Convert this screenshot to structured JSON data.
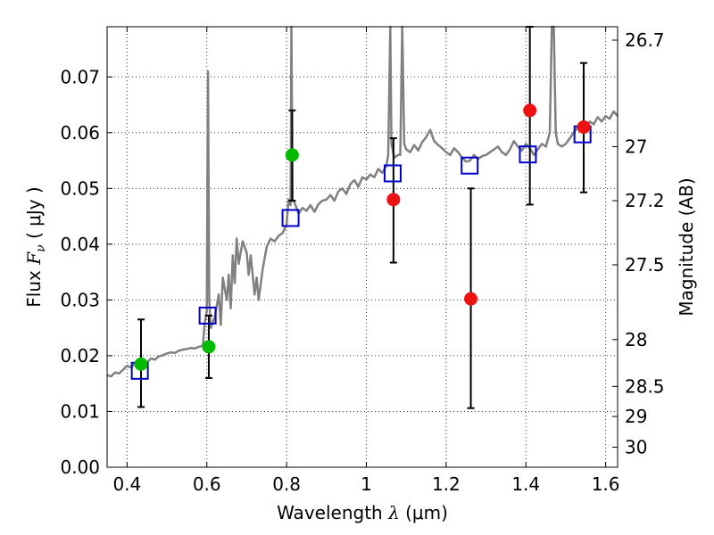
{
  "chart_data": {
    "type": "scatter",
    "xlabel": "Wavelength  λ (μm)",
    "ylabel": "Flux  F_ν  ( μJy )",
    "y2label": "Magnitude (AB)",
    "xlim": [
      0.35,
      1.63
    ],
    "ylim": [
      0.0,
      0.079
    ],
    "grid": true,
    "x_ticks": [
      0.4,
      0.6,
      0.8,
      1.0,
      1.2,
      1.4,
      1.6
    ],
    "x_tick_labels": [
      "0.4",
      "0.6",
      "0.8",
      "1",
      "1.2",
      "1.4",
      "1.6"
    ],
    "y_ticks": [
      0.0,
      0.01,
      0.02,
      0.03,
      0.04,
      0.05,
      0.06,
      0.07
    ],
    "y_tick_labels": [
      "0.00",
      "0.01",
      "0.02",
      "0.03",
      "0.04",
      "0.05",
      "0.06",
      "0.07"
    ],
    "y2_ticks": [
      {
        "label": "26.7",
        "flux": 0.0766
      },
      {
        "label": "27",
        "flux": 0.0575
      },
      {
        "label": "27.2",
        "flux": 0.0478
      },
      {
        "label": "27.5",
        "flux": 0.0363
      },
      {
        "label": "28",
        "flux": 0.0229
      },
      {
        "label": "28.5",
        "flux": 0.0145
      },
      {
        "label": "29",
        "flux": 0.0091
      },
      {
        "label": "30",
        "flux": 0.0036
      }
    ],
    "colors": {
      "spectrum": "#808080",
      "green_points": "#00bb00",
      "red_points": "#ee1111",
      "model_squares": "#0000cc",
      "error_bars": "#000000"
    },
    "series": [
      {
        "kind": "spectrum",
        "points": [
          [
            0.35,
            0.0165
          ],
          [
            0.36,
            0.0163
          ],
          [
            0.37,
            0.017
          ],
          [
            0.38,
            0.0168
          ],
          [
            0.39,
            0.0175
          ],
          [
            0.4,
            0.0182
          ],
          [
            0.41,
            0.0179
          ],
          [
            0.42,
            0.0186
          ],
          [
            0.43,
            0.0183
          ],
          [
            0.44,
            0.019
          ],
          [
            0.45,
            0.0188
          ],
          [
            0.46,
            0.0195
          ],
          [
            0.47,
            0.0193
          ],
          [
            0.48,
            0.0199
          ],
          [
            0.49,
            0.0201
          ],
          [
            0.5,
            0.0204
          ],
          [
            0.51,
            0.0206
          ],
          [
            0.52,
            0.0205
          ],
          [
            0.53,
            0.0209
          ],
          [
            0.54,
            0.0211
          ],
          [
            0.55,
            0.0212
          ],
          [
            0.56,
            0.0214
          ],
          [
            0.57,
            0.0213
          ],
          [
            0.58,
            0.0216
          ],
          [
            0.59,
            0.0218
          ],
          [
            0.595,
            0.026
          ],
          [
            0.6,
            0.028
          ],
          [
            0.603,
            0.071
          ],
          [
            0.606,
            0.03
          ],
          [
            0.61,
            0.025
          ],
          [
            0.62,
            0.027
          ],
          [
            0.63,
            0.031
          ],
          [
            0.635,
            0.0255
          ],
          [
            0.64,
            0.034
          ],
          [
            0.65,
            0.03
          ],
          [
            0.655,
            0.0345
          ],
          [
            0.66,
            0.0285
          ],
          [
            0.665,
            0.038
          ],
          [
            0.67,
            0.033
          ],
          [
            0.675,
            0.041
          ],
          [
            0.68,
            0.0365
          ],
          [
            0.69,
            0.0405
          ],
          [
            0.7,
            0.0385
          ],
          [
            0.705,
            0.0345
          ],
          [
            0.71,
            0.038
          ],
          [
            0.72,
            0.031
          ],
          [
            0.725,
            0.034
          ],
          [
            0.73,
            0.03
          ],
          [
            0.74,
            0.0355
          ],
          [
            0.75,
            0.0395
          ],
          [
            0.76,
            0.041
          ],
          [
            0.77,
            0.0405
          ],
          [
            0.78,
            0.0415
          ],
          [
            0.79,
            0.042
          ],
          [
            0.8,
            0.0435
          ],
          [
            0.805,
            0.048
          ],
          [
            0.81,
            0.047
          ],
          [
            0.812,
            0.079
          ],
          [
            0.815,
            0.048
          ],
          [
            0.82,
            0.0475
          ],
          [
            0.83,
            0.0455
          ],
          [
            0.84,
            0.0465
          ],
          [
            0.85,
            0.046
          ],
          [
            0.86,
            0.047
          ],
          [
            0.87,
            0.0458
          ],
          [
            0.88,
            0.0472
          ],
          [
            0.89,
            0.0478
          ],
          [
            0.9,
            0.048
          ],
          [
            0.91,
            0.0488
          ],
          [
            0.92,
            0.0478
          ],
          [
            0.93,
            0.0495
          ],
          [
            0.94,
            0.05
          ],
          [
            0.95,
            0.049
          ],
          [
            0.96,
            0.0508
          ],
          [
            0.97,
            0.0515
          ],
          [
            0.98,
            0.0503
          ],
          [
            0.99,
            0.052
          ],
          [
            1.0,
            0.0516
          ],
          [
            1.01,
            0.0525
          ],
          [
            1.02,
            0.052
          ],
          [
            1.03,
            0.0535
          ],
          [
            1.04,
            0.0528
          ],
          [
            1.05,
            0.054
          ],
          [
            1.055,
            0.056
          ],
          [
            1.06,
            0.079
          ],
          [
            1.063,
            0.058
          ],
          [
            1.07,
            0.0555
          ],
          [
            1.08,
            0.056
          ],
          [
            1.085,
            0.056
          ],
          [
            1.09,
            0.079
          ],
          [
            1.095,
            0.058
          ],
          [
            1.1,
            0.057
          ],
          [
            1.11,
            0.0565
          ],
          [
            1.12,
            0.0578
          ],
          [
            1.13,
            0.0568
          ],
          [
            1.14,
            0.0583
          ],
          [
            1.15,
            0.0592
          ],
          [
            1.16,
            0.0605
          ],
          [
            1.17,
            0.0585
          ],
          [
            1.18,
            0.0578
          ],
          [
            1.19,
            0.0572
          ],
          [
            1.2,
            0.0565
          ],
          [
            1.21,
            0.056
          ],
          [
            1.22,
            0.0572
          ],
          [
            1.23,
            0.0565
          ],
          [
            1.24,
            0.0555
          ],
          [
            1.25,
            0.0548
          ],
          [
            1.26,
            0.055
          ],
          [
            1.27,
            0.056
          ],
          [
            1.28,
            0.0553
          ],
          [
            1.29,
            0.0558
          ],
          [
            1.3,
            0.056
          ],
          [
            1.31,
            0.0565
          ],
          [
            1.32,
            0.057
          ],
          [
            1.33,
            0.0575
          ],
          [
            1.34,
            0.0565
          ],
          [
            1.35,
            0.056
          ],
          [
            1.36,
            0.057
          ],
          [
            1.37,
            0.0585
          ],
          [
            1.38,
            0.0575
          ],
          [
            1.39,
            0.0568
          ],
          [
            1.4,
            0.058
          ],
          [
            1.41,
            0.0572
          ],
          [
            1.42,
            0.056
          ],
          [
            1.43,
            0.057
          ],
          [
            1.44,
            0.058
          ],
          [
            1.45,
            0.0575
          ],
          [
            1.46,
            0.06
          ],
          [
            1.465,
            0.079
          ],
          [
            1.47,
            0.079
          ],
          [
            1.475,
            0.06
          ],
          [
            1.48,
            0.058
          ],
          [
            1.49,
            0.0575
          ],
          [
            1.5,
            0.058
          ],
          [
            1.51,
            0.059
          ],
          [
            1.52,
            0.06
          ],
          [
            1.53,
            0.061
          ],
          [
            1.54,
            0.0612
          ],
          [
            1.55,
            0.0605
          ],
          [
            1.56,
            0.062
          ],
          [
            1.57,
            0.0615
          ],
          [
            1.58,
            0.0628
          ],
          [
            1.59,
            0.062
          ],
          [
            1.6,
            0.063
          ],
          [
            1.61,
            0.0625
          ],
          [
            1.62,
            0.0638
          ],
          [
            1.63,
            0.063
          ]
        ]
      },
      {
        "kind": "green_points",
        "points": [
          {
            "x": 0.435,
            "y": 0.0185,
            "ylo": 0.0108,
            "yhi": 0.0265
          },
          {
            "x": 0.605,
            "y": 0.0216,
            "ylo": 0.016,
            "yhi": 0.0272
          },
          {
            "x": 0.814,
            "y": 0.056,
            "ylo": 0.0478,
            "yhi": 0.064
          }
        ]
      },
      {
        "kind": "red_points",
        "points": [
          {
            "x": 1.068,
            "y": 0.048,
            "ylo": 0.0367,
            "yhi": 0.059
          },
          {
            "x": 1.262,
            "y": 0.0302,
            "ylo": 0.0106,
            "yhi": 0.05
          },
          {
            "x": 1.41,
            "y": 0.064,
            "ylo": 0.0471,
            "yhi": 0.079
          },
          {
            "x": 1.545,
            "y": 0.061,
            "ylo": 0.0493,
            "yhi": 0.0725
          }
        ]
      },
      {
        "kind": "model_squares",
        "points": [
          {
            "x": 0.432,
            "y": 0.0173
          },
          {
            "x": 0.602,
            "y": 0.0272
          },
          {
            "x": 0.81,
            "y": 0.0447
          },
          {
            "x": 1.066,
            "y": 0.0527
          },
          {
            "x": 1.259,
            "y": 0.0541
          },
          {
            "x": 1.405,
            "y": 0.0561
          },
          {
            "x": 1.542,
            "y": 0.0597
          }
        ]
      }
    ]
  }
}
